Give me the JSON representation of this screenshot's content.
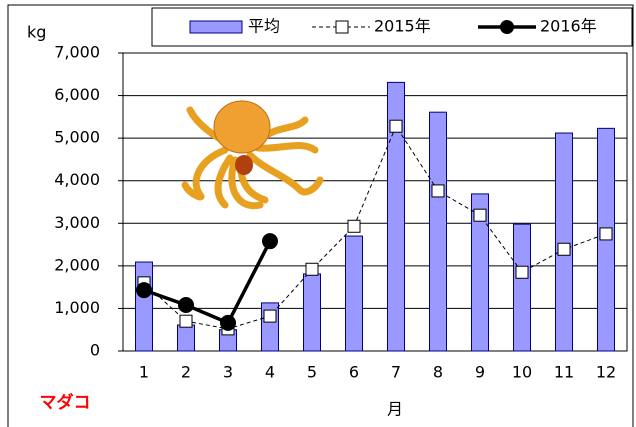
{
  "chart_data": {
    "type": "bar_line",
    "y_label": "kg",
    "x_label": "月",
    "annotation": "マダコ",
    "categories": [
      "1",
      "2",
      "3",
      "4",
      "5",
      "6",
      "7",
      "8",
      "9",
      "10",
      "11",
      "12"
    ],
    "series": [
      {
        "name": "平均",
        "type": "bar",
        "color": "#9999ff",
        "values": [
          2090,
          610,
          500,
          1130,
          1810,
          2700,
          6310,
          5610,
          3690,
          2980,
          5120,
          5230
        ]
      },
      {
        "name": "2015年",
        "type": "line",
        "color": "#000000",
        "marker": "square",
        "dashed": true,
        "values": [
          1600,
          700,
          520,
          820,
          1920,
          2930,
          5280,
          3760,
          3190,
          1850,
          2390,
          2750
        ]
      },
      {
        "name": "2016年",
        "type": "line",
        "color": "#000000",
        "marker": "circle",
        "dashed": false,
        "values": [
          1430,
          1080,
          660,
          2580,
          null,
          null,
          null,
          null,
          null,
          null,
          null,
          null
        ]
      }
    ],
    "ylim": [
      0,
      7000
    ],
    "yticks": [
      0,
      {
        "value": 1000,
        "label": "1,000"
      },
      {
        "value": 2000,
        "label": "2,000"
      },
      {
        "value": 3000,
        "label": "3,000"
      },
      {
        "value": 4000,
        "label": "4,000"
      },
      {
        "value": 5000,
        "label": "5,000"
      },
      {
        "value": 6000,
        "label": "6,000"
      },
      {
        "value": 7000,
        "label": "7,000"
      }
    ],
    "grid": true
  }
}
